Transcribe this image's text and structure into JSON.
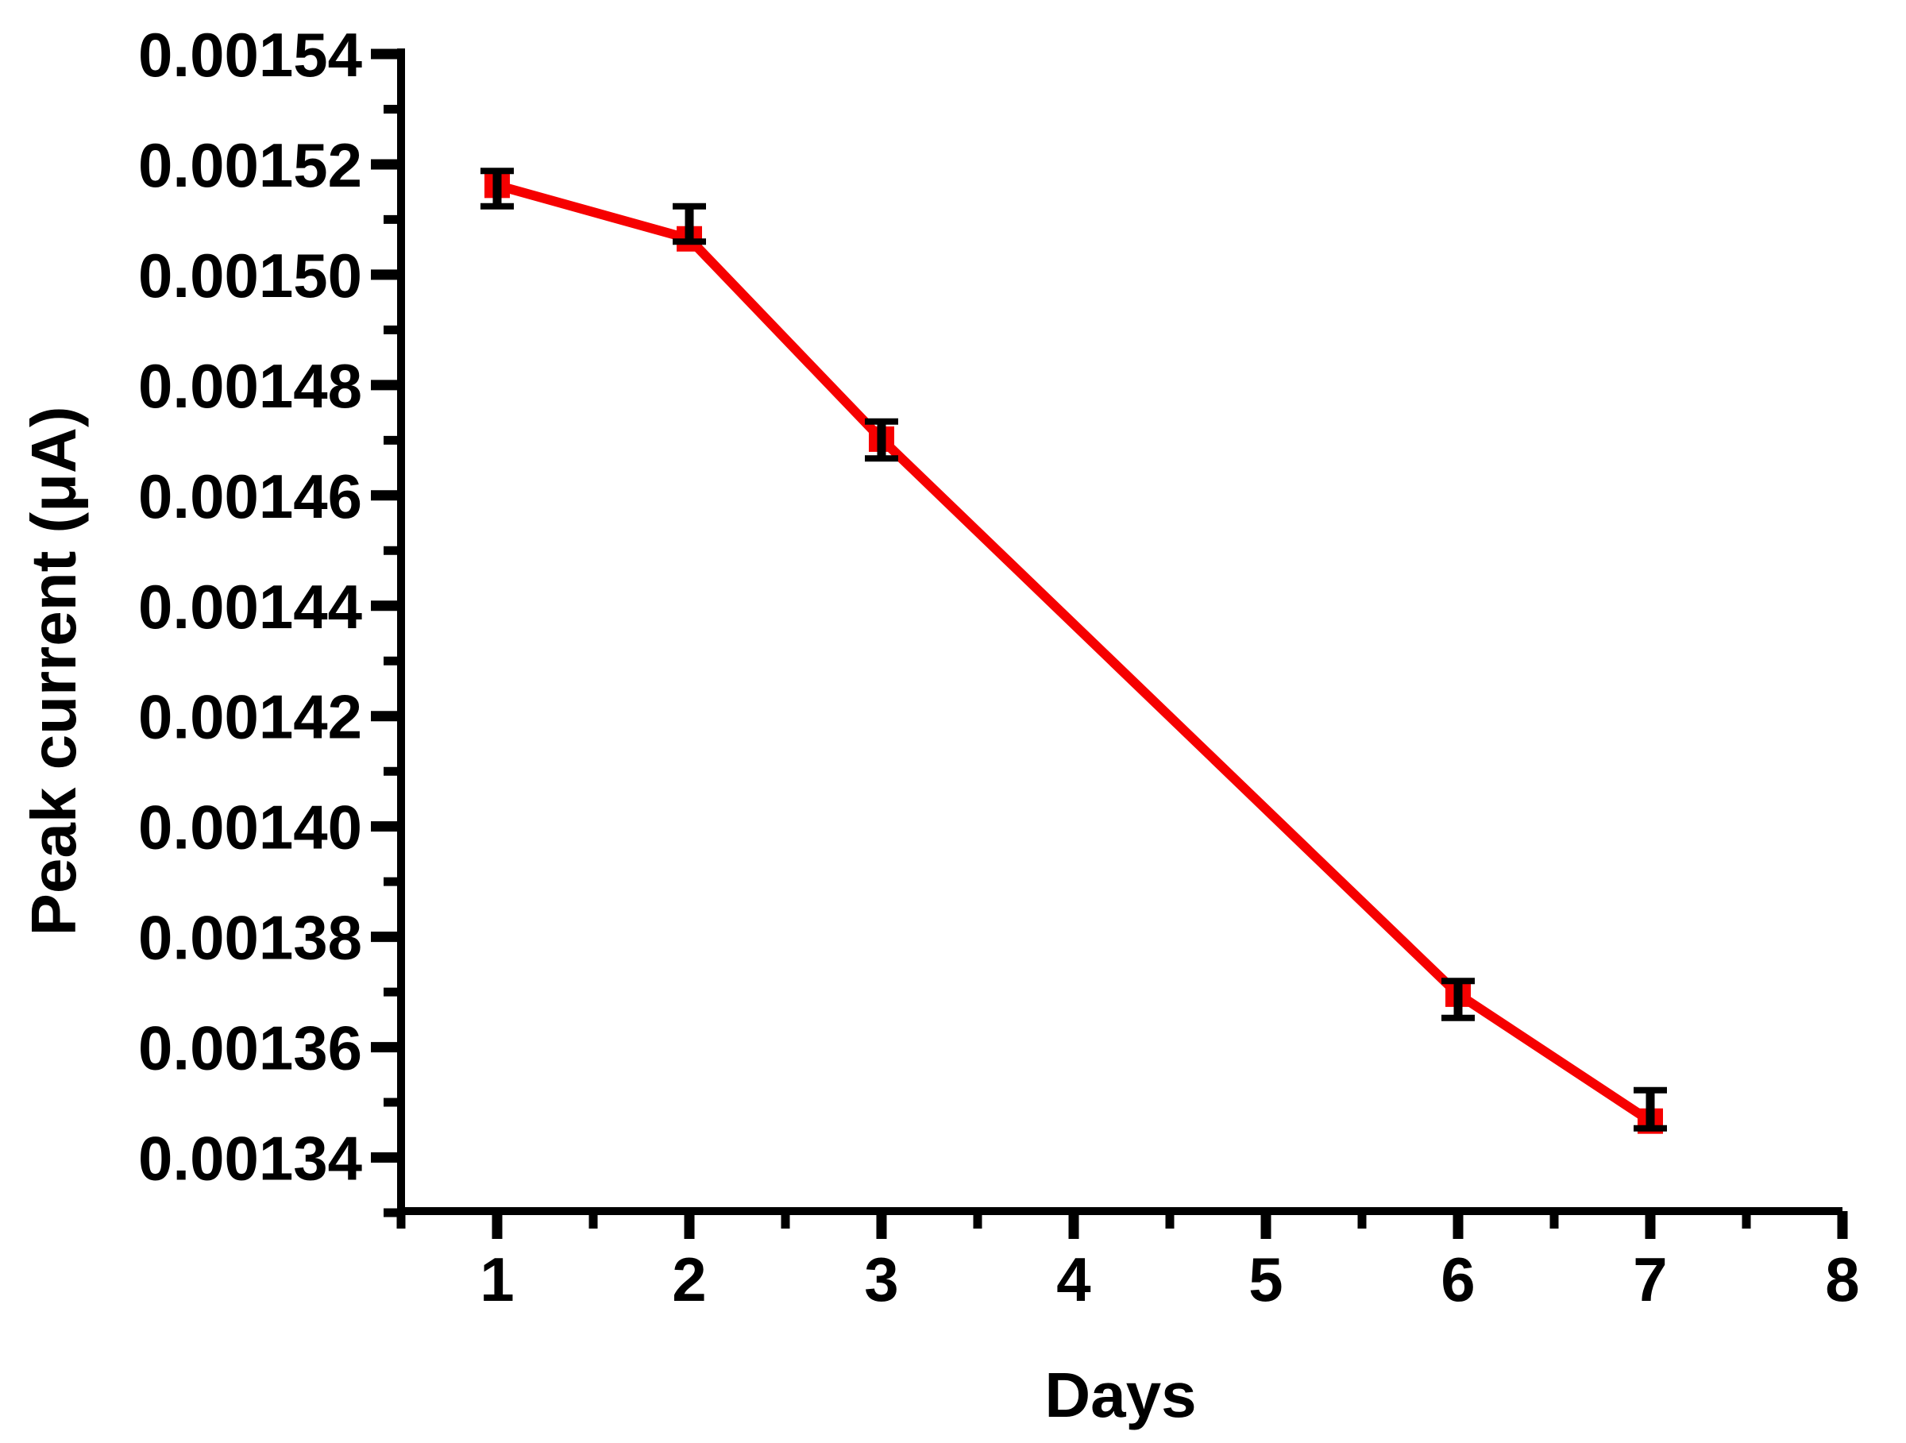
{
  "chart_data": {
    "type": "line",
    "title": "",
    "xlabel": "Days",
    "ylabel": "Peak current (μA)",
    "xlim": [
      0.5,
      8
    ],
    "ylim": [
      0.00133,
      0.00154
    ],
    "grid": false,
    "legend": "none",
    "x": [
      1,
      2,
      3,
      6,
      7
    ],
    "series": [
      {
        "name": "Peak current",
        "marker": "square",
        "color": "#f60000",
        "error_color": "#000000",
        "values": [
          0.0015162,
          0.0015065,
          0.0014702,
          0.0013696,
          0.0013466
        ],
        "error_bar_top": [
          0.0015188,
          0.0015124,
          0.0014734,
          0.001372,
          0.0013522
        ],
        "error_bar_bottom": [
          0.0015124,
          0.001506,
          0.0014667,
          0.0013653,
          0.0013453
        ]
      }
    ],
    "xticks": {
      "values": [
        1,
        2,
        3,
        4,
        5,
        6,
        7,
        8
      ],
      "labels": [
        "1",
        "2",
        "3",
        "4",
        "5",
        "6",
        "7",
        "8"
      ],
      "minor": [
        0.5,
        1.5,
        2.5,
        3.5,
        4.5,
        5.5,
        6.5,
        7.5
      ]
    },
    "yticks": {
      "values": [
        0.00134,
        0.00136,
        0.00138,
        0.0014,
        0.00142,
        0.00144,
        0.00146,
        0.00148,
        0.0015,
        0.00152,
        0.00154
      ],
      "labels": [
        "0.00134",
        "0.00136",
        "0.00138",
        "0.00140",
        "0.00142",
        "0.00144",
        "0.00146",
        "0.00148",
        "0.00150",
        "0.00152",
        "0.00154"
      ],
      "minor": [
        0.00133,
        0.00135,
        0.00137,
        0.00139,
        0.00141,
        0.00143,
        0.00145,
        0.00147,
        0.00149,
        0.00151,
        0.00153
      ]
    },
    "axis_color": "#000000"
  }
}
